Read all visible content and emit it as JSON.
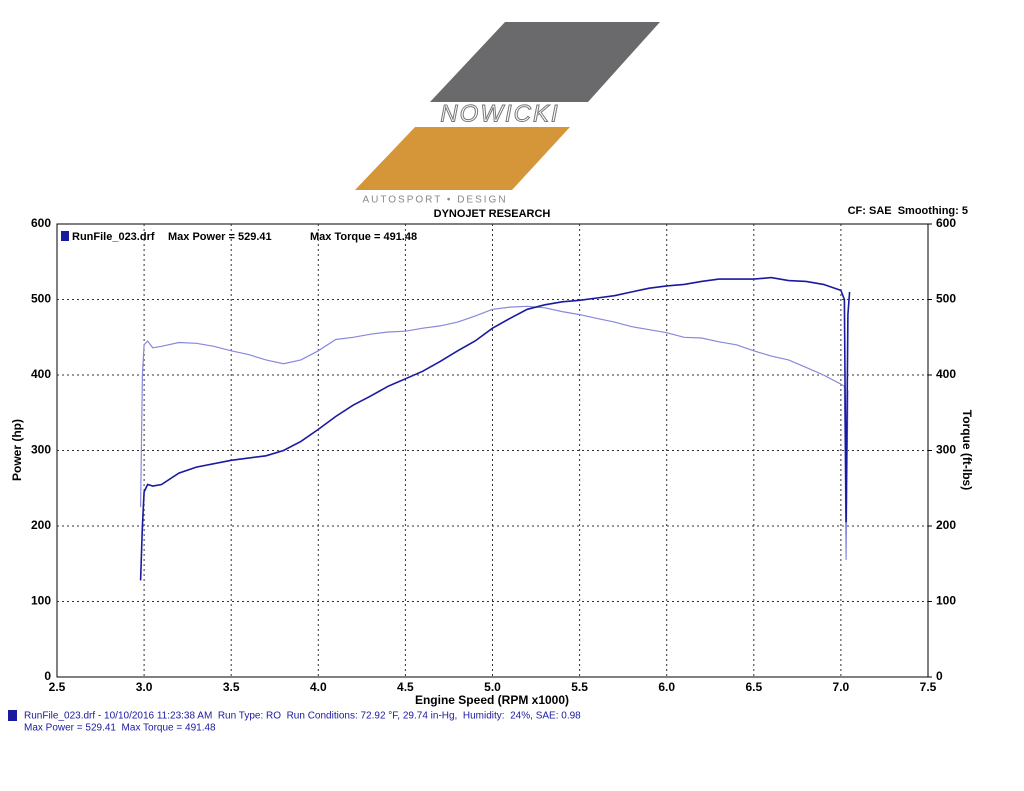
{
  "logo": {
    "name": "NOWICKI",
    "tagline": "AUTOSPORT • DESIGN"
  },
  "chart_data": {
    "type": "line",
    "title": "DYNOJET RESEARCH",
    "subtitle": "CF: SAE  Smoothing: 5",
    "legend_title": "RunFile_023.drf",
    "xlabel": "Engine Speed (RPM x1000)",
    "ylabel": "Power (hp)",
    "y2label": "Torque (ft-lbs)",
    "xlim": [
      2.5,
      7.5
    ],
    "xticks": [
      2.5,
      {
        "value": 3,
        "label": "3.0"
      },
      3.5,
      {
        "value": 4,
        "label": "4.0"
      },
      4.5,
      {
        "value": 5,
        "label": "5.0"
      },
      5.5,
      {
        "value": 6,
        "label": "6.0"
      },
      6.5,
      {
        "value": 7,
        "label": "7.0"
      },
      7.5
    ],
    "ylim": [
      0,
      600
    ],
    "yticks": [
      0,
      100,
      200,
      300,
      400,
      500,
      600
    ],
    "y2lim": [
      0,
      600
    ],
    "y2ticks": [
      0,
      100,
      200,
      300,
      400,
      500,
      600
    ],
    "grid": true,
    "series": [
      {
        "name": "Max Power = 529.41",
        "color": "#1a1aa0",
        "x": [
          2.98,
          2.99,
          3.0,
          3.02,
          3.05,
          3.1,
          3.2,
          3.3,
          3.5,
          3.7,
          3.8,
          3.9,
          4.0,
          4.1,
          4.2,
          4.3,
          4.4,
          4.5,
          4.6,
          4.7,
          4.8,
          4.9,
          5.0,
          5.1,
          5.2,
          5.3,
          5.4,
          5.5,
          5.6,
          5.7,
          5.8,
          5.9,
          6.0,
          6.1,
          6.2,
          6.3,
          6.4,
          6.5,
          6.6,
          6.7,
          6.8,
          6.9,
          7.0,
          7.02,
          7.03,
          7.04,
          7.05
        ],
        "values": [
          128,
          200,
          245,
          255,
          253,
          255,
          270,
          278,
          287,
          293,
          300,
          312,
          328,
          345,
          360,
          372,
          385,
          395,
          405,
          418,
          432,
          445,
          462,
          475,
          487,
          493,
          497,
          499,
          502,
          505,
          510,
          515,
          518,
          520,
          524,
          527,
          527,
          527,
          529,
          525,
          524,
          520,
          512,
          500,
          205,
          480,
          510
        ]
      },
      {
        "name": "Max Torque = 491.48",
        "color": "#8888dd",
        "axis": "y2",
        "x": [
          2.98,
          2.99,
          3.0,
          3.02,
          3.05,
          3.1,
          3.2,
          3.3,
          3.4,
          3.5,
          3.6,
          3.7,
          3.8,
          3.9,
          4.0,
          4.1,
          4.2,
          4.3,
          4.4,
          4.5,
          4.6,
          4.7,
          4.8,
          4.9,
          5.0,
          5.1,
          5.2,
          5.3,
          5.4,
          5.5,
          5.6,
          5.7,
          5.8,
          5.9,
          6.0,
          6.1,
          6.2,
          6.3,
          6.4,
          6.5,
          6.6,
          6.7,
          6.8,
          6.9,
          7.0,
          7.02,
          7.03,
          7.04
        ],
        "values": [
          225,
          400,
          440,
          445,
          436,
          438,
          443,
          442,
          438,
          432,
          427,
          420,
          415,
          420,
          432,
          447,
          450,
          454,
          457,
          458,
          462,
          465,
          470,
          478,
          487,
          490,
          491,
          489,
          484,
          480,
          475,
          470,
          464,
          460,
          456,
          450,
          449,
          444,
          440,
          432,
          425,
          420,
          410,
          400,
          388,
          385,
          155,
          380
        ]
      }
    ],
    "footer": [
      "RunFile_023.drf - 10/10/2016 11:23:38 AM  Run Type: RO  Run Conditions: 72.92 °F, 29.74 in-Hg,  Humidity:  24%, SAE: 0.98",
      "Max Power = 529.41  Max Torque = 491.48"
    ]
  }
}
